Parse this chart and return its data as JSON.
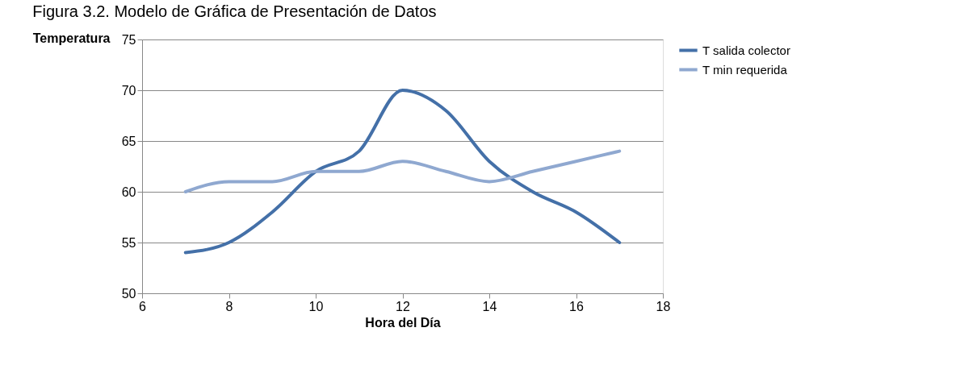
{
  "chart_data": {
    "type": "line",
    "title": "Figura 3.2. Modelo de Gráfica de Presentación de Datos",
    "xlabel": "Hora del Día",
    "ylabel": "Temperatura",
    "x": [
      7,
      8,
      9,
      10,
      11,
      12,
      13,
      14,
      15,
      16,
      17
    ],
    "series": [
      {
        "name": "T salida colector",
        "color": "#4470a8",
        "values": [
          54,
          55,
          58,
          62,
          64,
          70,
          68,
          63,
          60,
          58,
          55
        ]
      },
      {
        "name": "T min requerida",
        "color": "#8fa8d0",
        "values": [
          60,
          61,
          61,
          62,
          62,
          63,
          62,
          61,
          62,
          63,
          64
        ]
      }
    ],
    "xlim": [
      6,
      18
    ],
    "xticks": [
      6,
      8,
      10,
      12,
      14,
      16,
      18
    ],
    "ylim": [
      50,
      75
    ],
    "yticks": [
      50,
      55,
      60,
      65,
      70,
      75
    ],
    "grid": "y",
    "legend": "right",
    "marker": "none",
    "line_style": "solid"
  }
}
